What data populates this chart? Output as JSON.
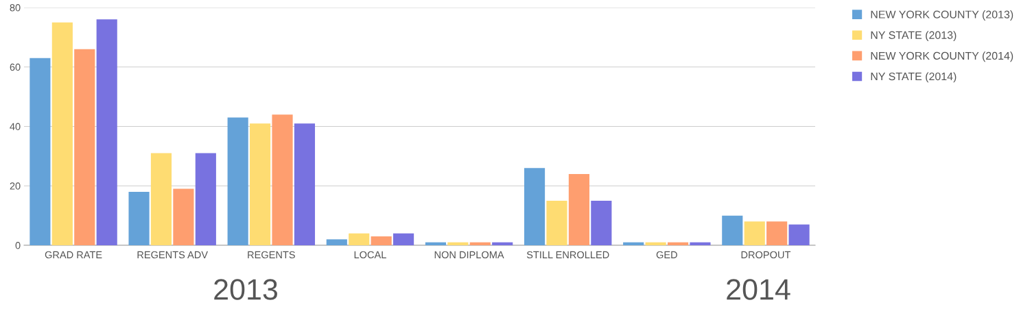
{
  "chart_data": {
    "type": "bar",
    "categories": [
      "GRAD RATE",
      "REGENTS ADV",
      "REGENTS",
      "LOCAL",
      "NON DIPLOMA",
      "STILL ENROLLED",
      "GED",
      "DROPOUT"
    ],
    "series": [
      {
        "name": "NEW YORK COUNTY (2013)",
        "color": "#64a2d8",
        "values": [
          63,
          18,
          43,
          2,
          1,
          26,
          1,
          10
        ]
      },
      {
        "name": "NY STATE (2013)",
        "color": "#fedc72",
        "values": [
          75,
          31,
          41,
          4,
          1,
          15,
          1,
          8
        ]
      },
      {
        "name": "NEW YORK COUNTY (2014)",
        "color": "#fe9e6f",
        "values": [
          66,
          19,
          44,
          3,
          1,
          24,
          1,
          8
        ]
      },
      {
        "name": "NY STATE (2014)",
        "color": "#7872e0",
        "values": [
          76,
          31,
          41,
          4,
          1,
          15,
          1,
          7
        ]
      }
    ],
    "ylim": [
      0,
      80
    ],
    "yticks": [
      0,
      20,
      40,
      60,
      80
    ],
    "grid": "y",
    "legend": "top right",
    "annotations": [
      "2013",
      "2014"
    ]
  }
}
